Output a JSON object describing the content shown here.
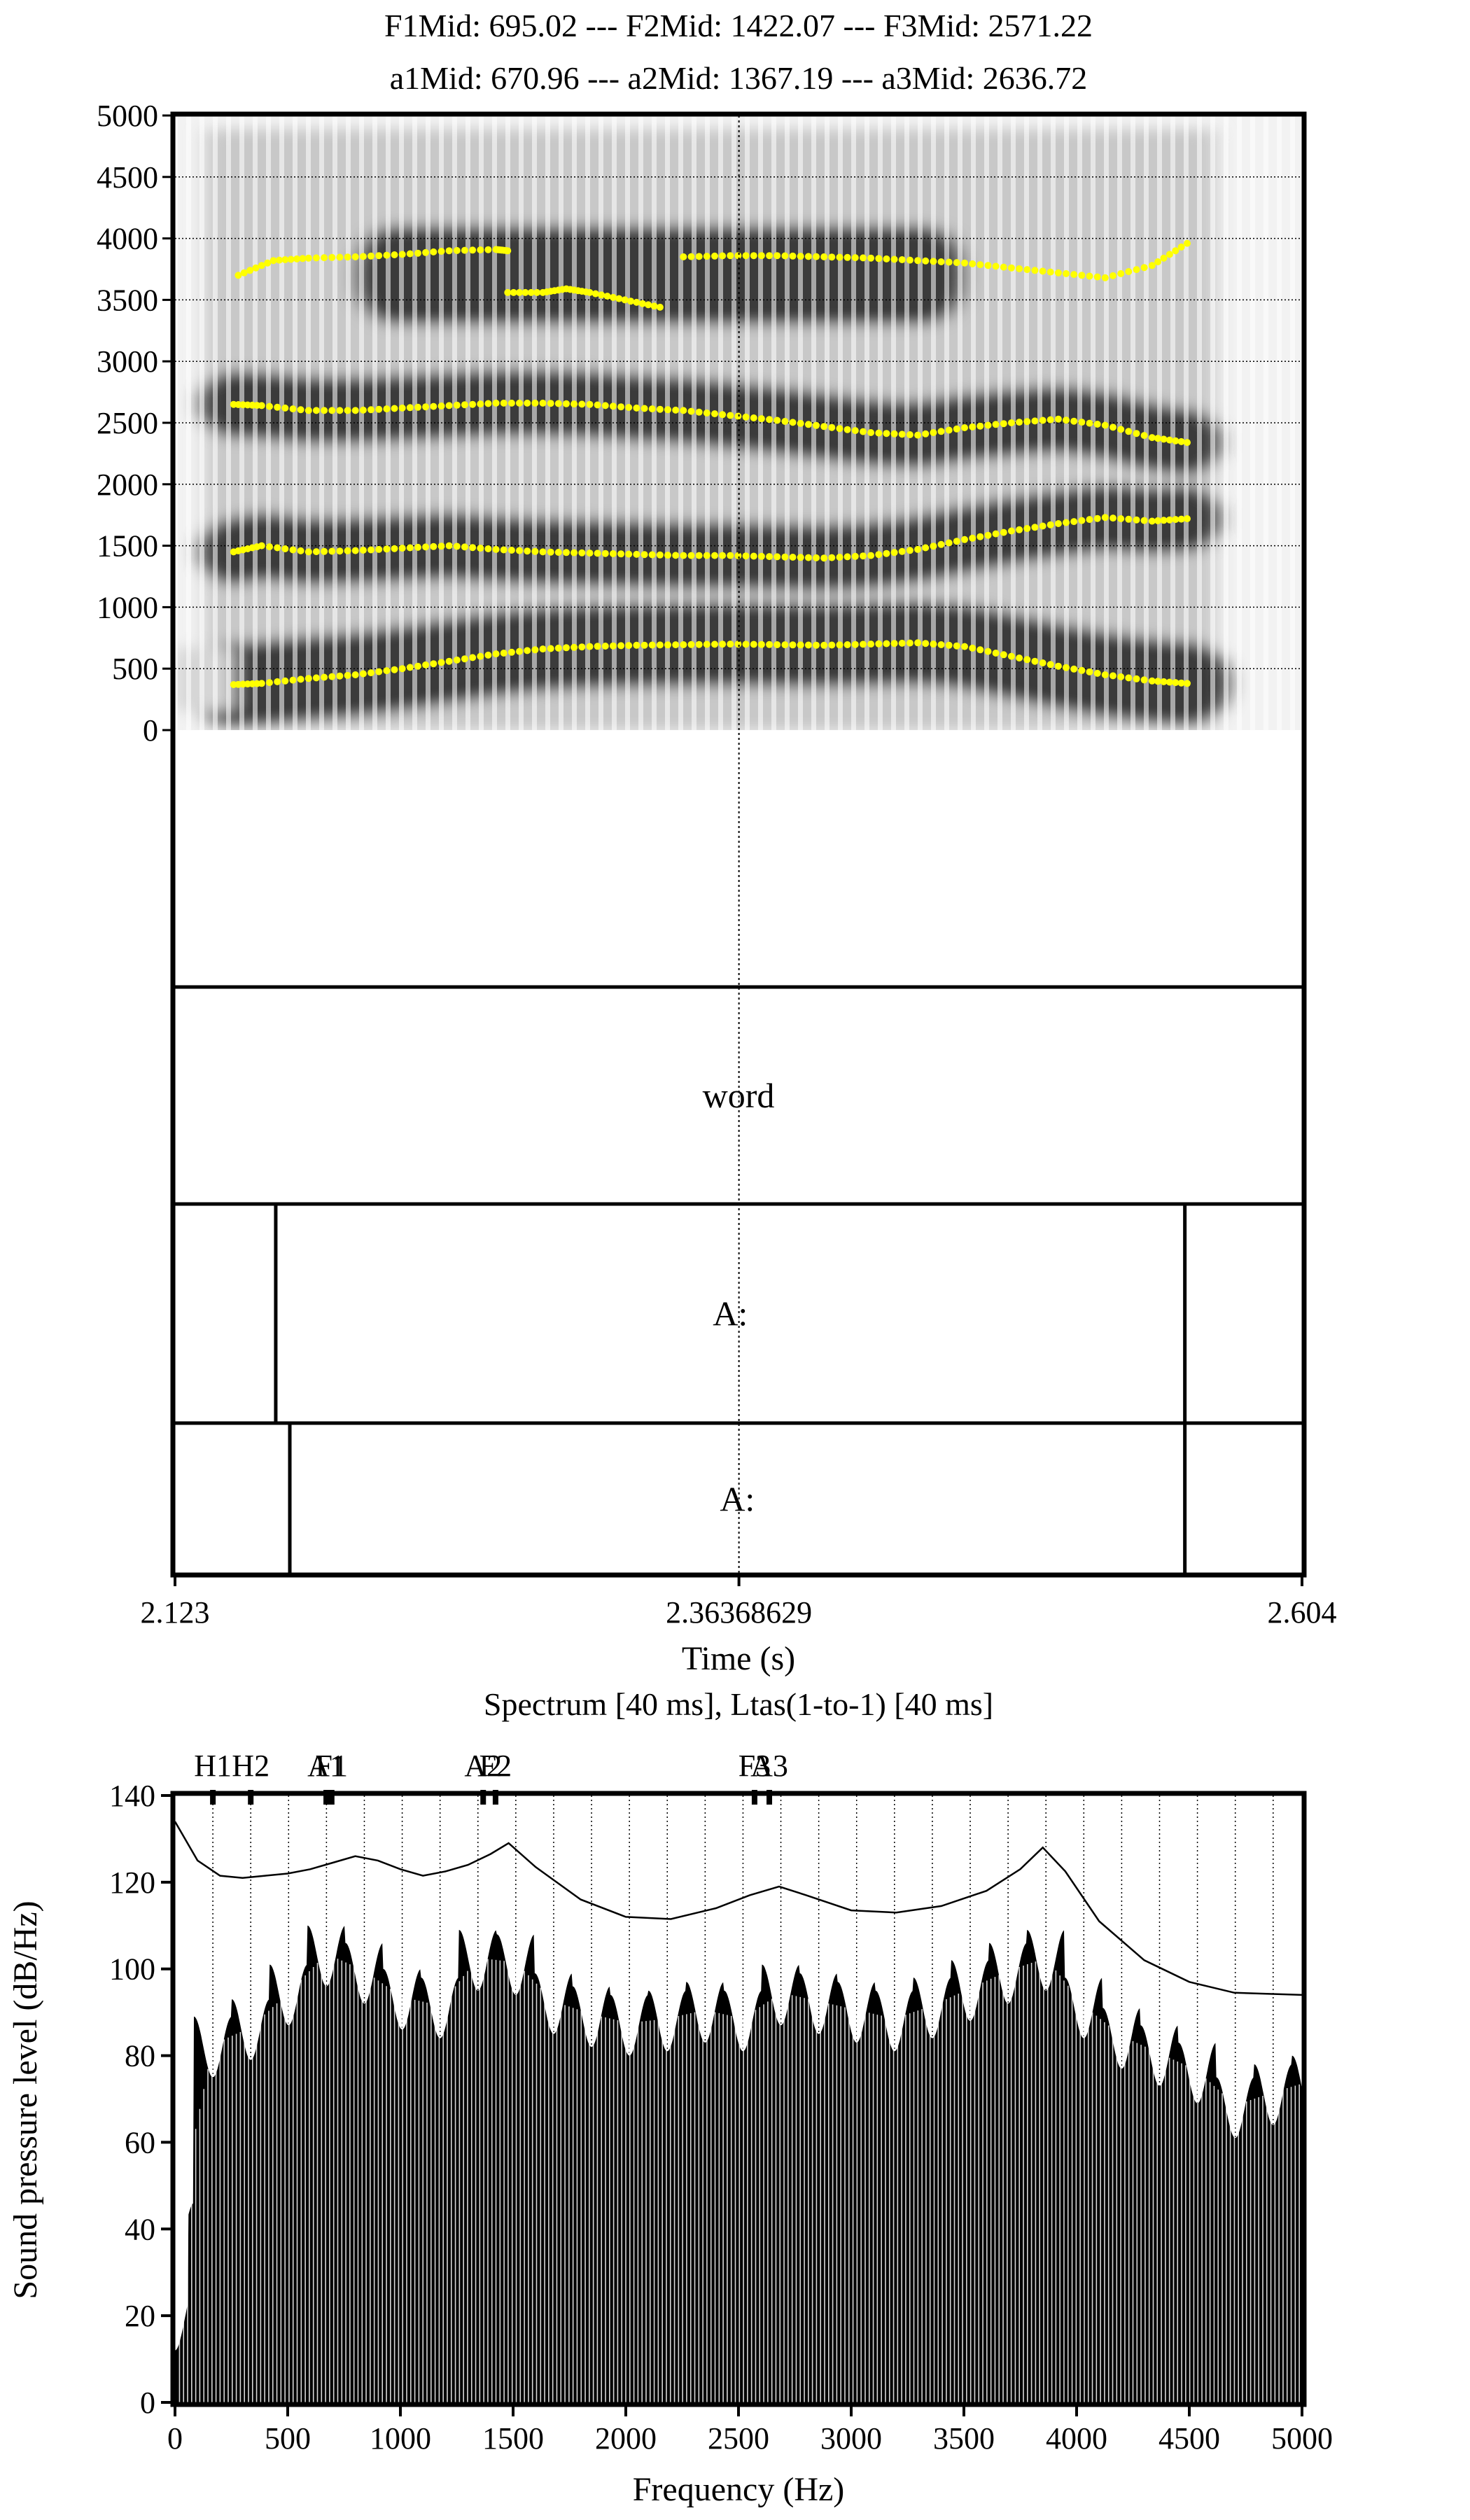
{
  "header": {
    "line1": "F1Mid: 695.02 --- F2Mid: 1422.07 --- F3Mid: 2571.22",
    "line2": "a1Mid: 670.96 --- a2Mid: 1367.19 --- a3Mid: 2636.72"
  },
  "colors": {
    "formant_track": "#ffff00",
    "ink": "#000000",
    "background": "#ffffff"
  },
  "chart_data": [
    {
      "type": "spectrogram",
      "title": "",
      "xlabel": "Time (s)",
      "ylabel": "",
      "xlim": [
        2.123,
        2.604
      ],
      "ylim": [
        0,
        5000
      ],
      "x_ticks": [
        "2.123",
        "2.36368629",
        "2.604"
      ],
      "y_ticks": [
        0,
        500,
        1000,
        1500,
        2000,
        2500,
        3000,
        3500,
        4000,
        4500,
        5000
      ],
      "cursor_time": 2.36368629,
      "grid": true,
      "formant_tracks": [
        {
          "x": [
            2.148,
            2.16,
            2.18,
            2.2,
            2.22,
            2.24,
            2.26,
            2.28,
            2.3,
            2.32,
            2.34,
            2.36,
            2.38,
            2.4,
            2.42,
            2.44,
            2.46,
            2.48,
            2.5,
            2.52,
            2.54,
            2.555
          ],
          "y": [
            370,
            380,
            420,
            450,
            500,
            560,
            620,
            660,
            680,
            690,
            695,
            700,
            695,
            690,
            700,
            710,
            680,
            600,
            520,
            450,
            400,
            380
          ]
        },
        {
          "x": [
            2.148,
            2.16,
            2.18,
            2.2,
            2.22,
            2.24,
            2.26,
            2.28,
            2.3,
            2.32,
            2.34,
            2.36,
            2.38,
            2.4,
            2.42,
            2.44,
            2.46,
            2.48,
            2.5,
            2.52,
            2.54,
            2.555
          ],
          "y": [
            1450,
            1500,
            1450,
            1460,
            1480,
            1500,
            1470,
            1450,
            1440,
            1430,
            1420,
            1420,
            1410,
            1400,
            1420,
            1470,
            1550,
            1620,
            1680,
            1730,
            1700,
            1720
          ]
        },
        {
          "x": [
            2.148,
            2.16,
            2.18,
            2.2,
            2.22,
            2.24,
            2.26,
            2.28,
            2.3,
            2.32,
            2.34,
            2.36,
            2.38,
            2.4,
            2.42,
            2.44,
            2.46,
            2.48,
            2.5,
            2.52,
            2.54,
            2.555
          ],
          "y": [
            2650,
            2640,
            2600,
            2600,
            2620,
            2640,
            2660,
            2660,
            2650,
            2620,
            2600,
            2560,
            2520,
            2470,
            2420,
            2400,
            2460,
            2500,
            2530,
            2480,
            2380,
            2340
          ]
        },
        {
          "x": [
            2.15,
            2.165,
            2.18,
            2.2,
            2.22,
            2.24,
            2.26,
            2.265
          ],
          "y": [
            3700,
            3820,
            3840,
            3850,
            3870,
            3900,
            3910,
            3900
          ]
        },
        {
          "x": [
            2.265,
            2.28,
            2.29,
            2.3,
            2.315,
            2.33
          ],
          "y": [
            3560,
            3560,
            3590,
            3560,
            3500,
            3440
          ]
        },
        {
          "x": [
            2.34,
            2.36,
            2.38,
            2.4,
            2.42,
            2.44,
            2.46,
            2.48,
            2.5,
            2.52,
            2.54,
            2.555
          ],
          "y": [
            3850,
            3860,
            3860,
            3850,
            3840,
            3820,
            3800,
            3760,
            3720,
            3680,
            3780,
            3960
          ]
        }
      ]
    },
    {
      "type": "textgrid",
      "xlim": [
        2.123,
        2.604
      ],
      "tiers": [
        {
          "intervals": [
            {
              "start": 2.123,
              "end": 2.604,
              "label": "word"
            }
          ]
        },
        {
          "intervals": [
            {
              "start": 2.123,
              "end": 2.166,
              "label": ""
            },
            {
              "start": 2.166,
              "end": 2.554,
              "label": "A:"
            },
            {
              "start": 2.554,
              "end": 2.604,
              "label": ""
            }
          ]
        },
        {
          "intervals": [
            {
              "start": 2.123,
              "end": 2.172,
              "label": ""
            },
            {
              "start": 2.172,
              "end": 2.554,
              "label": "A:"
            },
            {
              "start": 2.554,
              "end": 2.604,
              "label": ""
            }
          ]
        }
      ]
    },
    {
      "type": "line",
      "title": "Spectrum [40 ms], Ltas(1-to-1) [40 ms]",
      "xlabel": "Frequency (Hz)",
      "ylabel": "Sound pressure level (dB/Hz)",
      "xlim": [
        0,
        5000
      ],
      "ylim": [
        0,
        140
      ],
      "x_ticks": [
        0,
        500,
        1000,
        1500,
        2000,
        2500,
        3000,
        3500,
        4000,
        4500,
        5000
      ],
      "y_ticks": [
        0,
        20,
        40,
        60,
        80,
        100,
        120,
        140
      ],
      "harmonic_spacing": 168,
      "series": [
        {
          "style": "thin-line",
          "x": [
            0,
            100,
            200,
            300,
            400,
            500,
            600,
            700,
            800,
            900,
            1000,
            1100,
            1200,
            1300,
            1400,
            1480,
            1600,
            1800,
            2000,
            2200,
            2400,
            2550,
            2680,
            2800,
            3000,
            3200,
            3400,
            3600,
            3750,
            3850,
            3950,
            4100,
            4300,
            4500,
            4700,
            5000
          ],
          "y": [
            134,
            125,
            121.5,
            121,
            121.5,
            122,
            123,
            124.5,
            126,
            125,
            123,
            121.5,
            122.5,
            124,
            126.5,
            129,
            123.5,
            116,
            112,
            111.5,
            114,
            117,
            119,
            117,
            113.5,
            113,
            114.5,
            118,
            123,
            128,
            122.5,
            111,
            102,
            97,
            94.5,
            94
          ]
        },
        {
          "style": "harmonic-peaks",
          "x": [
            0,
            168,
            336,
            504,
            672,
            840,
            1008,
            1176,
            1344,
            1512,
            1680,
            1848,
            2016,
            2184,
            2352,
            2520,
            2688,
            2856,
            3024,
            3192,
            3360,
            3528,
            3696,
            3864,
            4032,
            4200,
            4368,
            4536,
            4704,
            4872,
            5000
          ],
          "y": [
            46,
            89,
            93,
            101,
            110,
            106,
            100,
            98,
            109,
            108,
            99,
            96,
            94,
            95,
            97,
            95,
            101,
            99,
            97,
            95,
            98,
            102,
            106,
            109,
            98,
            91,
            87,
            83,
            75,
            78,
            80
          ]
        }
      ],
      "markers": [
        {
          "label": "H1",
          "x": 168
        },
        {
          "label": "H2",
          "x": 336
        },
        {
          "label": "A1",
          "x": 670.96
        },
        {
          "label": "F1",
          "x": 695.02
        },
        {
          "label": "A2",
          "x": 1367.19
        },
        {
          "label": "F2",
          "x": 1422.07
        },
        {
          "label": "F3",
          "x": 2571.22
        },
        {
          "label": "A3",
          "x": 2636.72
        }
      ]
    }
  ]
}
